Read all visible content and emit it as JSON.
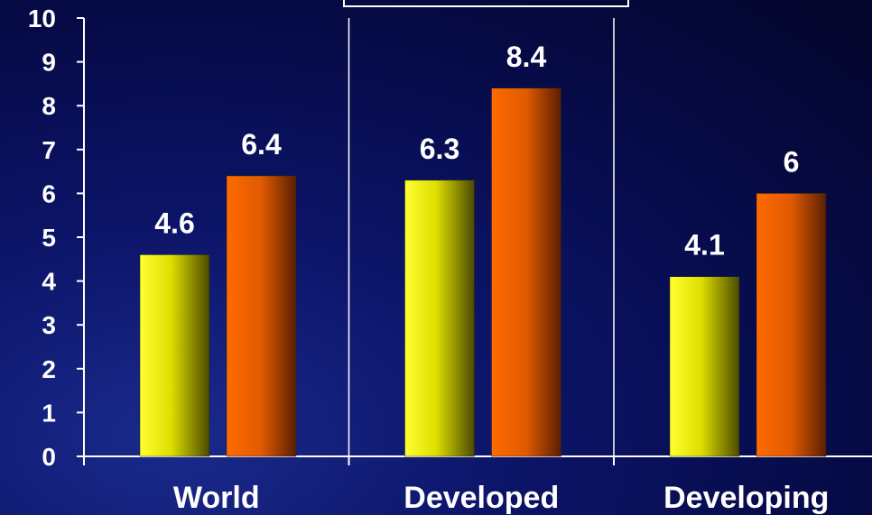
{
  "chart_data": {
    "type": "bar",
    "categories": [
      "World",
      "Developed",
      "Developing"
    ],
    "series": [
      {
        "values": [
          4.6,
          6.3,
          4.1
        ],
        "color": "#ffff00"
      },
      {
        "values": [
          6.4,
          8.4,
          6
        ],
        "color": "#ff6600"
      }
    ],
    "ylim": [
      0,
      10
    ],
    "yticks": [
      "0",
      "1",
      "2",
      "3",
      "4",
      "5",
      "6",
      "7",
      "8",
      "9",
      "10"
    ],
    "data_labels": [
      [
        "4.6",
        "6.3",
        "4.1"
      ],
      [
        "6.4",
        "8.4",
        "6"
      ]
    ],
    "grid": false,
    "axis_color": "#ffffff",
    "text_color": "#ffffff"
  }
}
